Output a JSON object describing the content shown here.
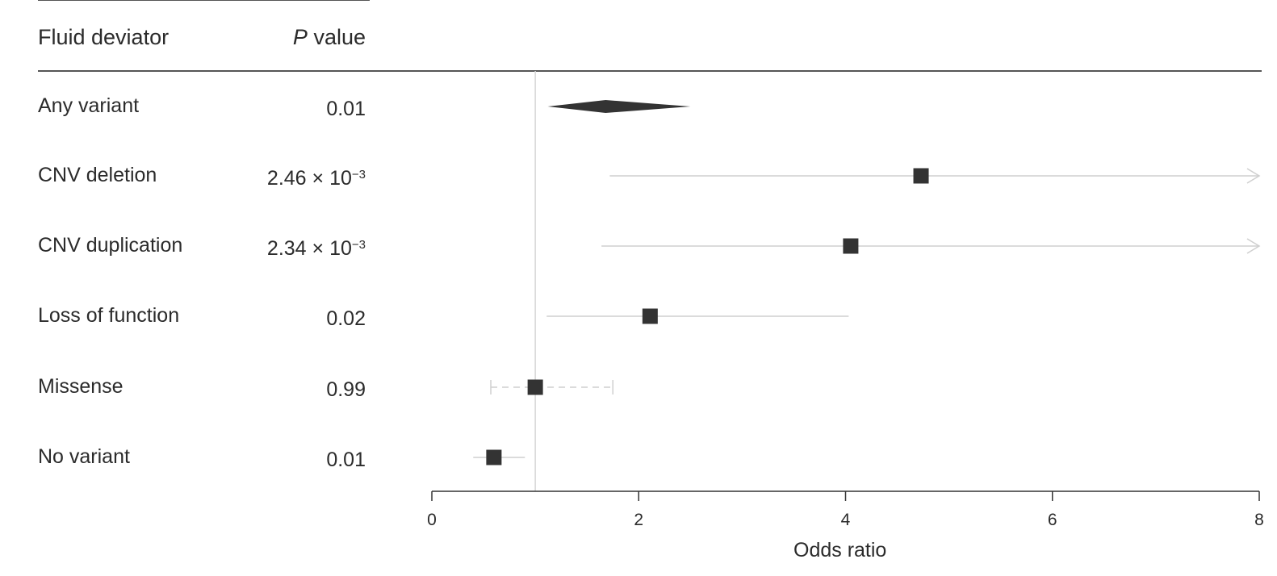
{
  "header": {
    "col_label": "Fluid deviator",
    "col_p_italic": "P",
    "col_p_rest": " value"
  },
  "rows": [
    {
      "label": "Any variant",
      "p_text": "0.01",
      "p_exp": ""
    },
    {
      "label": "CNV deletion",
      "p_text": "2.46 × 10",
      "p_exp": "−3"
    },
    {
      "label": "CNV duplication",
      "p_text": "2.34 × 10",
      "p_exp": "−3"
    },
    {
      "label": "Loss of function",
      "p_text": "0.02",
      "p_exp": ""
    },
    {
      "label": "Missense",
      "p_text": "0.99",
      "p_exp": ""
    },
    {
      "label": "No variant",
      "p_text": "0.01",
      "p_exp": ""
    }
  ],
  "chart_data": {
    "type": "forest",
    "xlabel": "Odds ratio",
    "xlim": [
      0,
      8
    ],
    "xticks": [
      0,
      2,
      4,
      6,
      8
    ],
    "reference_line": 1,
    "points": [
      {
        "label": "Any variant",
        "shape": "diamond",
        "or": 1.68,
        "ci_low": 1.12,
        "ci_high": 2.5,
        "line_style": "solid",
        "clipped_high": false
      },
      {
        "label": "CNV deletion",
        "shape": "square",
        "or": 4.73,
        "ci_low": 1.72,
        "ci_high": 8,
        "line_style": "solid",
        "clipped_high": true
      },
      {
        "label": "CNV duplication",
        "shape": "square",
        "or": 4.05,
        "ci_low": 1.64,
        "ci_high": 8,
        "line_style": "solid",
        "clipped_high": true
      },
      {
        "label": "Loss of function",
        "shape": "square",
        "or": 2.11,
        "ci_low": 1.11,
        "ci_high": 4.03,
        "line_style": "solid",
        "clipped_high": false
      },
      {
        "label": "Missense",
        "shape": "square",
        "or": 1.0,
        "ci_low": 0.57,
        "ci_high": 1.75,
        "line_style": "dashed",
        "clipped_high": false
      },
      {
        "label": "No variant",
        "shape": "square",
        "or": 0.6,
        "ci_low": 0.4,
        "ci_high": 0.9,
        "line_style": "solid",
        "clipped_high": false
      }
    ],
    "colors": {
      "marker": "#333333",
      "ci_line": "#cfcfcf",
      "ref_line": "#d6d6d6",
      "axis": "#333333"
    }
  }
}
